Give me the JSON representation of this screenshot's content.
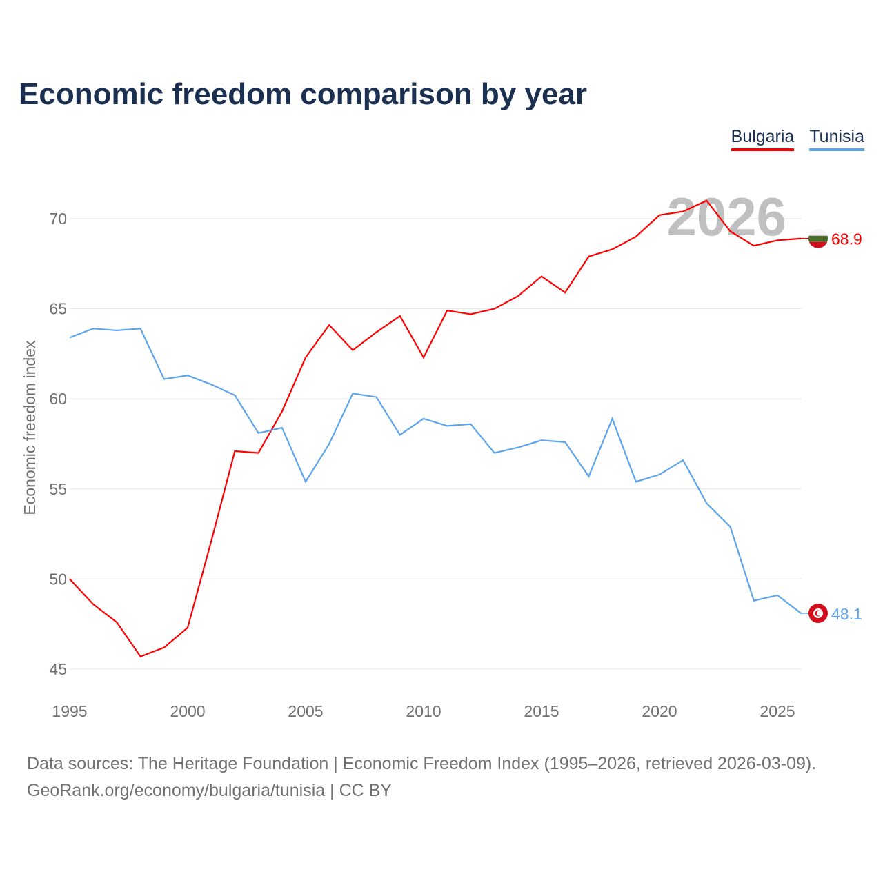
{
  "chart_data": {
    "type": "line",
    "title": "Economic freedom comparison by year",
    "xlabel": "",
    "ylabel": "Economic freedom index",
    "xlim": [
      1995,
      2026
    ],
    "ylim": [
      45,
      72
    ],
    "yticks": [
      45,
      50,
      55,
      60,
      65,
      70
    ],
    "xticks": [
      1995,
      2000,
      2005,
      2010,
      2015,
      2020,
      2025
    ],
    "grid": true,
    "legend_placement": "top-right",
    "year_label": "2026",
    "x": [
      1995,
      1996,
      1997,
      1998,
      1999,
      2000,
      2001,
      2002,
      2003,
      2004,
      2005,
      2006,
      2007,
      2008,
      2009,
      2010,
      2011,
      2012,
      2013,
      2014,
      2015,
      2016,
      2017,
      2018,
      2019,
      2020,
      2021,
      2022,
      2023,
      2024,
      2025,
      2026
    ],
    "series": [
      {
        "name": "Bulgaria",
        "color": "#ff0000",
        "end_label": "68.9",
        "values": [
          50.0,
          48.6,
          47.6,
          45.7,
          46.2,
          47.3,
          52.1,
          57.1,
          57.0,
          59.3,
          62.3,
          64.1,
          62.7,
          63.7,
          64.6,
          62.3,
          64.9,
          64.7,
          65.0,
          65.7,
          66.8,
          65.9,
          67.9,
          68.3,
          69.0,
          70.2,
          70.4,
          71.0,
          69.3,
          68.5,
          68.8,
          68.9
        ]
      },
      {
        "name": "Tunisia",
        "color": "#5ca4ec",
        "end_label": "48.1",
        "values": [
          63.4,
          63.9,
          63.8,
          63.9,
          61.1,
          61.3,
          60.8,
          60.2,
          58.1,
          58.4,
          55.4,
          57.5,
          60.3,
          60.1,
          58.0,
          58.9,
          58.5,
          58.6,
          57.0,
          57.3,
          57.7,
          57.6,
          55.7,
          58.9,
          55.4,
          55.8,
          56.6,
          54.2,
          52.9,
          48.8,
          49.1,
          48.1
        ]
      }
    ]
  },
  "source": {
    "line1": "Data sources: The Heritage Foundation | Economic Freedom Index (1995–2026, retrieved 2026-03-09).",
    "line2": "GeoRank.org/economy/bulgaria/tunisia | CC BY"
  }
}
